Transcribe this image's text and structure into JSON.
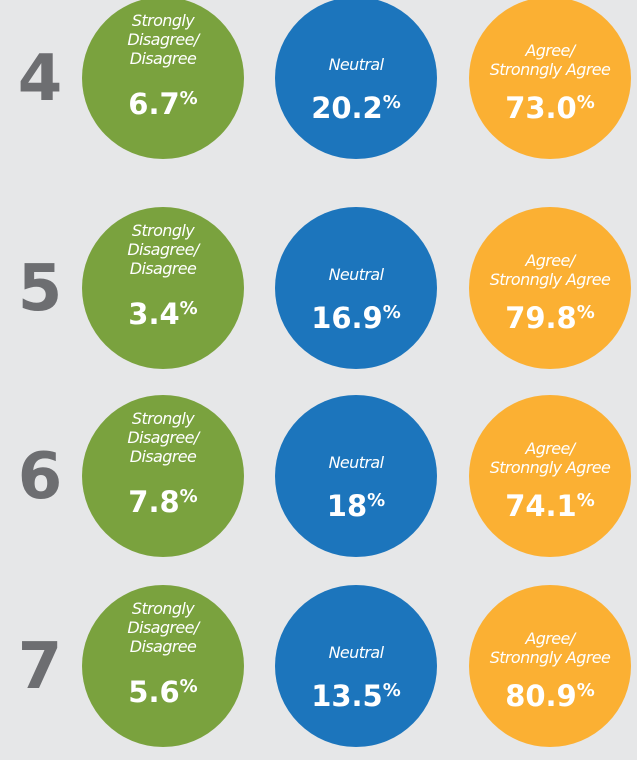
{
  "rows": [
    {
      "number": "4",
      "items": [
        {
          "label": [
            "Strongly",
            "Disagree/",
            "Disagree"
          ],
          "value": "6.7",
          "unit": "%"
        },
        {
          "label": [
            "Neutral"
          ],
          "value": "20.2",
          "unit": "%"
        },
        {
          "label": [
            "Agree/",
            "Stronngly Agree"
          ],
          "value": "73.0",
          "unit": "%"
        }
      ]
    },
    {
      "number": "5",
      "items": [
        {
          "label": [
            "Strongly",
            "Disagree/",
            "Disagree"
          ],
          "value": "3.4",
          "unit": "%"
        },
        {
          "label": [
            "Neutral"
          ],
          "value": "16.9",
          "unit": "%"
        },
        {
          "label": [
            "Agree/",
            "Stronngly Agree"
          ],
          "value": "79.8",
          "unit": "%"
        }
      ]
    },
    {
      "number": "6",
      "items": [
        {
          "label": [
            "Strongly",
            "Disagree/",
            "Disagree"
          ],
          "value": "7.8",
          "unit": "%"
        },
        {
          "label": [
            "Neutral"
          ],
          "value": "18",
          "unit": "%"
        },
        {
          "label": [
            "Agree/",
            "Stronngly Agree"
          ],
          "value": "74.1",
          "unit": "%"
        }
      ]
    },
    {
      "number": "7",
      "items": [
        {
          "label": [
            "Strongly",
            "Disagree/",
            "Disagree"
          ],
          "value": "5.6",
          "unit": "%"
        },
        {
          "label": [
            "Neutral"
          ],
          "value": "13.5",
          "unit": "%"
        },
        {
          "label": [
            "Agree/",
            "Stronngly Agree"
          ],
          "value": "80.9",
          "unit": "%"
        }
      ]
    }
  ]
}
